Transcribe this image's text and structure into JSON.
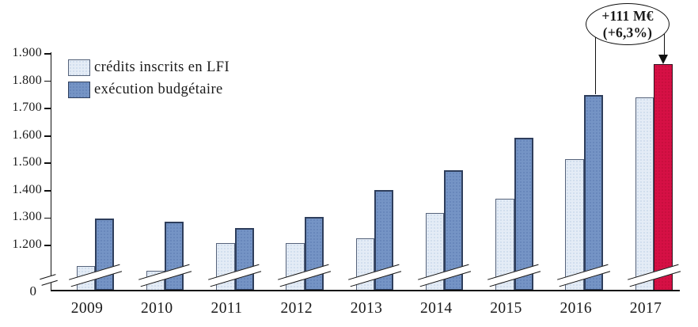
{
  "chart_data": {
    "type": "bar",
    "title": "",
    "categories": [
      "2009",
      "2010",
      "2011",
      "2012",
      "2013",
      "2014",
      "2015",
      "2016",
      "2017"
    ],
    "series": [
      {
        "name": "crédits inscrits en LFI",
        "values": [
          1125,
          1108,
          1208,
          1210,
          1227,
          1318,
          1370,
          1514,
          1741
        ],
        "color": "#e4ecf6",
        "dot_color": "#cbd9ec",
        "border_color": "#56637b"
      },
      {
        "name": "exécution budgétaire",
        "values": [
          1297,
          1288,
          1264,
          1304,
          1402,
          1475,
          1593,
          1751,
          1862
        ],
        "color": "#7594c5",
        "dot_color": "#6383b8",
        "border_color": "#2e3e5c"
      }
    ],
    "highlight_bar": {
      "category_index": 8,
      "series_index": 1,
      "color": "#d61045",
      "dot_color": "#c30d3c",
      "border_color": "#33101d"
    },
    "y_axis": {
      "zero_label": "0",
      "axis_break": true,
      "ticks": [
        {
          "label": "1.200",
          "value": 1200
        },
        {
          "label": "1.300",
          "value": 1300
        },
        {
          "label": "1.400",
          "value": 1400
        },
        {
          "label": "1.500",
          "value": 1500
        },
        {
          "label": "1.600",
          "value": 1600
        },
        {
          "label": "1.700",
          "value": 1700
        },
        {
          "label": "1.800",
          "value": 1800
        },
        {
          "label": "1.900",
          "value": 1900
        }
      ]
    },
    "ylim": [
      1100,
      1900
    ],
    "grid": false,
    "legend_position": "top-left",
    "annotation": {
      "line1": "+111 M€",
      "line2": "(+6,3%)"
    }
  }
}
